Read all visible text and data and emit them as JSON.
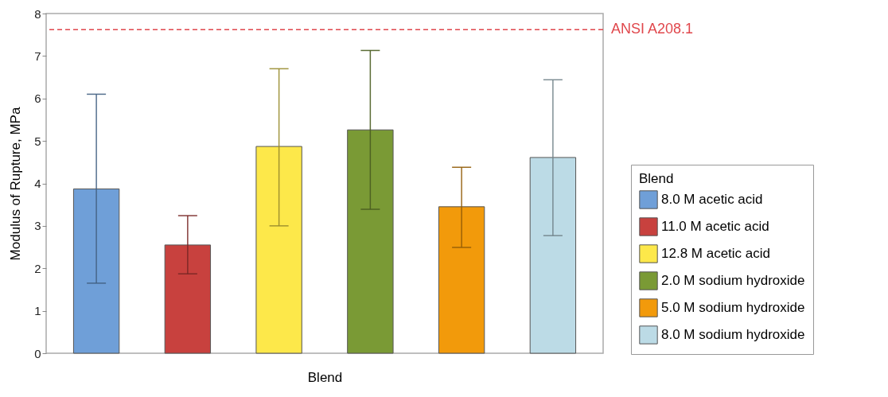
{
  "chart_data": {
    "type": "bar",
    "xlabel": "Blend",
    "ylabel": "Modulus of Rupture, MPa",
    "legend_title": "Blend",
    "categories": [
      null,
      null,
      null,
      null,
      null,
      null
    ],
    "series": [
      {
        "name": "8.0 M acetic acid",
        "color": "#6f9fd8",
        "values": [
          3.87,
          null,
          null,
          null,
          null,
          null
        ],
        "errors": [
          [
            1.65,
            6.1
          ],
          null,
          null,
          null,
          null,
          null
        ]
      },
      {
        "name": "11.0 M acetic acid",
        "color": "#c8413e",
        "values": [
          null,
          2.55,
          null,
          null,
          null,
          null
        ],
        "errors": [
          null,
          [
            1.87,
            3.24
          ],
          null,
          null,
          null,
          null
        ]
      },
      {
        "name": "12.8 M acetic acid",
        "color": "#fde84a",
        "values": [
          null,
          null,
          4.87,
          null,
          null,
          null
        ],
        "errors": [
          null,
          null,
          [
            3.0,
            6.7
          ],
          null,
          null,
          null
        ]
      },
      {
        "name": "2.0 M sodium hydroxide",
        "color": "#7a9a35",
        "values": [
          null,
          null,
          null,
          5.26,
          null,
          null
        ],
        "errors": [
          null,
          null,
          null,
          [
            3.39,
            7.13
          ],
          null,
          null
        ]
      },
      {
        "name": "5.0 M sodium hydroxide",
        "color": "#f29a0b",
        "values": [
          null,
          null,
          null,
          null,
          3.45,
          null
        ],
        "errors": [
          null,
          null,
          null,
          null,
          [
            2.49,
            4.38
          ],
          null
        ]
      },
      {
        "name": "8.0 M sodium hydroxide",
        "color": "#bcdbe6",
        "values": [
          null,
          null,
          null,
          null,
          null,
          4.61
        ],
        "errors": [
          null,
          null,
          null,
          null,
          null,
          [
            2.77,
            6.44
          ]
        ]
      }
    ],
    "ylim": [
      0,
      8
    ],
    "yticks": [
      0,
      1,
      2,
      3,
      4,
      5,
      6,
      7,
      8
    ],
    "tick_labels": "y",
    "legend": "right",
    "ref_lines": [
      {
        "axis": "y",
        "value": 7.62,
        "label": "ANSI A208.1",
        "color": "#e0474c",
        "line_style": "dashed"
      }
    ]
  }
}
